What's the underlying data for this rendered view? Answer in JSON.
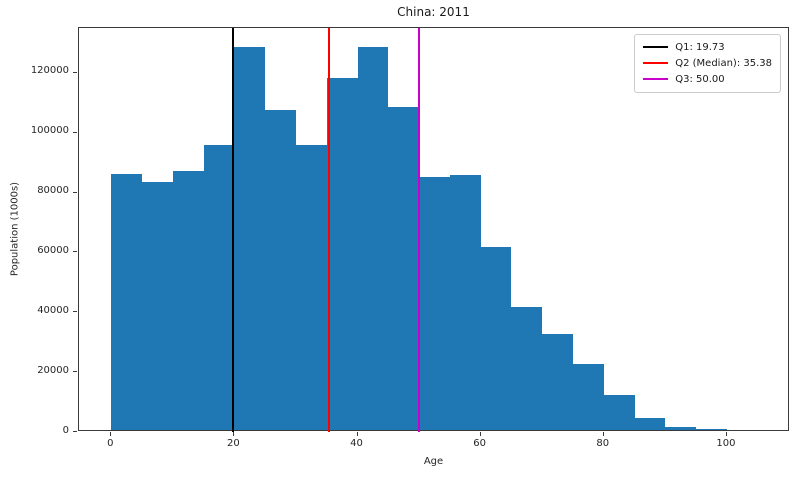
{
  "title": "China: 2011",
  "axes": {
    "xlabel": "Age",
    "ylabel": "Population (1000s)"
  },
  "colors": {
    "bar": "#1f77b4",
    "spine": "#3a3a3a",
    "q1_line": "#000000",
    "q2_line": "#ff0000",
    "q3_line": "#cc00cc"
  },
  "chart_data": {
    "type": "bar",
    "subtype": "histogram",
    "title": "China: 2011",
    "xlabel": "Age",
    "ylabel": "Population (1000s)",
    "bin_start": 0,
    "bin_width": 5,
    "bin_edges": [
      0,
      5,
      10,
      15,
      20,
      25,
      30,
      35,
      40,
      45,
      50,
      55,
      60,
      65,
      70,
      75,
      80,
      85,
      90,
      95,
      100
    ],
    "values": [
      85700,
      83000,
      86600,
      95100,
      128100,
      107100,
      95400,
      117700,
      128100,
      108000,
      84600,
      85300,
      61100,
      41200,
      32000,
      22200,
      11600,
      4100,
      1100,
      300
    ],
    "xlim": [
      -5.25,
      110.25
    ],
    "ylim": [
      0,
      135000
    ],
    "xticks": [
      0,
      20,
      40,
      60,
      80,
      100
    ],
    "yticks": [
      0,
      20000,
      40000,
      60000,
      80000,
      100000,
      120000
    ],
    "grid": false,
    "legend_position": "upper right",
    "vlines": [
      {
        "name": "q1",
        "x": 19.73,
        "color": "#000000",
        "label": "Q1: 19.73"
      },
      {
        "name": "q2",
        "x": 35.38,
        "color": "#ff0000",
        "label": "Q2 (Median): 35.38"
      },
      {
        "name": "q3",
        "x": 50.0,
        "color": "#cc00cc",
        "label": "Q3: 50.00"
      }
    ]
  }
}
